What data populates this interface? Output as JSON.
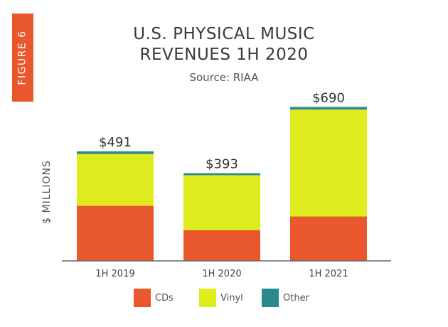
{
  "figure_tab": "FIGURE 6",
  "chart_data": {
    "type": "bar",
    "stacked": true,
    "title_line1": "U.S. PHYSICAL MUSIC",
    "title_line2": "REVENUES 1H 2020",
    "subtitle": "Source: RIAA",
    "ylabel": "$ MILLIONS",
    "xlabel": "",
    "categories": [
      "1H 2019",
      "1H 2020",
      "1H 2021"
    ],
    "series": [
      {
        "name": "CDs",
        "color": "#e8582c",
        "values": [
          247,
          138,
          199
        ]
      },
      {
        "name": "Vinyl",
        "color": "#dfec1d",
        "values": [
          232,
          246,
          479
        ]
      },
      {
        "name": "Other",
        "color": "#2a8a8c",
        "values": [
          12,
          9,
          12
        ]
      }
    ],
    "totals": [
      491,
      393,
      690
    ],
    "total_labels": [
      "$491",
      "$393",
      "$690"
    ],
    "ylim": [
      0,
      720
    ],
    "grid": false,
    "legend_position": "bottom"
  }
}
